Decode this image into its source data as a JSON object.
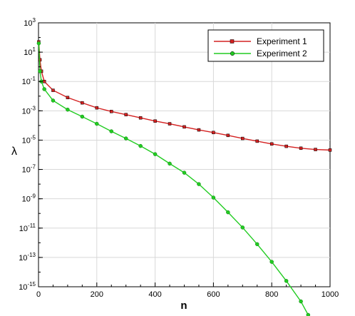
{
  "chart_data": {
    "type": "line",
    "title": "",
    "xlabel": "n",
    "ylabel": "λ",
    "xlim": [
      0,
      1000
    ],
    "ylim_log10": [
      -15,
      3
    ],
    "y_scale": "log",
    "grid": true,
    "legend_position": "top-right",
    "x_ticks": [
      "0",
      "200",
      "400",
      "600",
      "800",
      "1000"
    ],
    "y_ticks": [
      {
        "base": "10",
        "exp": "3"
      },
      {
        "base": "10",
        "exp": "1"
      },
      {
        "base": "10",
        "exp": "-1"
      },
      {
        "base": "10",
        "exp": "-3"
      },
      {
        "base": "10",
        "exp": "-5"
      },
      {
        "base": "10",
        "exp": "-7"
      },
      {
        "base": "10",
        "exp": "-9"
      },
      {
        "base": "10",
        "exp": "-11"
      },
      {
        "base": "10",
        "exp": "-13"
      },
      {
        "base": "10",
        "exp": "-15"
      }
    ],
    "series": [
      {
        "name": "Experiment 1",
        "color": "#d42020",
        "marker": "square",
        "x": [
          1,
          5,
          10,
          20,
          50,
          100,
          150,
          200,
          250,
          300,
          350,
          400,
          450,
          500,
          550,
          600,
          650,
          700,
          750,
          800,
          850,
          900,
          950,
          1000
        ],
        "y": [
          50,
          3,
          0.5,
          0.1,
          0.025,
          0.008,
          0.0035,
          0.0016,
          0.0009,
          0.00055,
          0.00033,
          0.0002,
          0.00013,
          8e-05,
          5e-05,
          3.3e-05,
          2.1e-05,
          1.3e-05,
          8.5e-06,
          5.5e-06,
          3.8e-06,
          2.8e-06,
          2.3e-06,
          2.1e-06
        ]
      },
      {
        "name": "Experiment 2",
        "color": "#22cc22",
        "marker": "circle",
        "x": [
          1,
          5,
          10,
          20,
          50,
          100,
          150,
          200,
          250,
          300,
          350,
          400,
          450,
          500,
          550,
          600,
          650,
          700,
          750,
          800,
          850,
          900,
          925,
          935
        ],
        "y": [
          40,
          0.5,
          0.1,
          0.03,
          0.005,
          0.0012,
          0.0004,
          0.00013,
          4e-05,
          1.3e-05,
          4e-06,
          1.1e-06,
          2.5e-07,
          6e-08,
          1e-08,
          1.2e-09,
          1.2e-10,
          1.1e-11,
          8e-13,
          5e-14,
          2.5e-15,
          1e-16,
          1.2e-17,
          5e-18
        ]
      }
    ]
  }
}
